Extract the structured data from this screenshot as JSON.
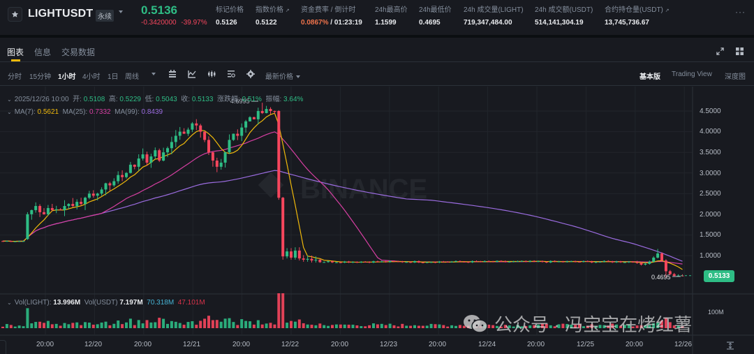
{
  "header": {
    "symbol": "LIGHTUSDT",
    "contract_type": "永续",
    "last_price": "0.5136",
    "change_abs": "-0.3420000",
    "change_pct": "-39.97%",
    "stats": [
      {
        "label": "标记价格",
        "value": "0.5126"
      },
      {
        "label": "指数价格",
        "value": "0.5122",
        "link": true
      },
      {
        "label": "资金费率 / 倒计时",
        "rate": "0.0867%",
        "countdown": "/ 01:23:19"
      },
      {
        "label": "24h最高价",
        "value": "1.1599"
      },
      {
        "label": "24h最低价",
        "value": "0.4695"
      },
      {
        "label": "24h 成交量(LIGHT)",
        "value": "719,347,484.00"
      },
      {
        "label": "24h 成交额(USDT)",
        "value": "514,141,304.19"
      },
      {
        "label": "合约持仓量(USDT)",
        "value": "13,745,736.67",
        "link": true
      }
    ],
    "more_label": "···"
  },
  "tabs": [
    {
      "label": "图表",
      "active": true
    },
    {
      "label": "信息",
      "active": false
    },
    {
      "label": "交易数据",
      "active": false
    }
  ],
  "toolbar": {
    "intervals": [
      {
        "label": "分时",
        "active": false
      },
      {
        "label": "15分钟",
        "active": false
      },
      {
        "label": "1小时",
        "active": true
      },
      {
        "label": "4小时",
        "active": false
      },
      {
        "label": "1日",
        "active": false
      },
      {
        "label": "周线",
        "active": false
      }
    ],
    "price_type": "最新价格",
    "views": [
      {
        "label": "基本版",
        "active": true
      },
      {
        "label": "Trading View",
        "active": false
      },
      {
        "label": "深度图",
        "active": false
      }
    ]
  },
  "legend": {
    "datetime": "2025/12/26 10:00",
    "open_label": "开:",
    "open": "0.5108",
    "high_label": "高:",
    "high": "0.5229",
    "low_label": "低:",
    "low": "0.5043",
    "close_label": "收:",
    "close": "0.5133",
    "change_label": "涨跌幅:",
    "change": "0.51%",
    "amplitude_label": "振幅:",
    "amplitude": "3.64%",
    "ma7_label": "MA(7):",
    "ma7": "0.5621",
    "ma25_label": "MA(25):",
    "ma25": "0.7332",
    "ma99_label": "MA(99):",
    "ma99": "0.8439"
  },
  "volume_legend": {
    "vol_base_label": "Vol(LIGHT):",
    "vol_base": "13.996M",
    "vol_quote_label": "Vol(USDT)",
    "vol_quote": "7.197M",
    "ma_a": "70.318M",
    "ma_b": "47.101M"
  },
  "annotations": {
    "high_marker": "4.6995",
    "low_marker": "0.4695",
    "last_price_tag": "0.5133",
    "volume_scale": "100M",
    "watermark_brand": "BINANCE",
    "watermark_text": "公众号 · 冯宝宝在烤红薯"
  },
  "colors": {
    "up": "#2ebd85",
    "down": "#f6465d",
    "ma7": "#f0b90b",
    "ma25": "#d63fa2",
    "ma99": "#9b6ce0",
    "accent": "#f0b90b"
  },
  "chart_data": {
    "type": "candlestick",
    "title": "LIGHTUSDT 1小时",
    "y_ticks": [
      "4.5000",
      "4.0000",
      "3.5000",
      "3.0000",
      "2.5000",
      "2.0000",
      "1.5000",
      "1.0000"
    ],
    "ylim": [
      0.3,
      4.9
    ],
    "x_ticks": [
      "20:00",
      "12/20",
      "20:00",
      "12/21",
      "20:00",
      "12/22",
      "20:00",
      "12/23",
      "20:00",
      "12/24",
      "20:00",
      "12/25",
      "20:00",
      "12/26"
    ],
    "series_summary": [
      {
        "phase": "pre-listing flat",
        "approx_price": 1.35
      },
      {
        "phase": "launch jump",
        "approx_price": 2.0
      },
      {
        "phase": "rally 12/20-12/21",
        "from": 2.0,
        "to": 4.6995
      },
      {
        "phase": "crash 12/21 late",
        "from": 4.5,
        "to": 0.95
      },
      {
        "phase": "flat 12/22-12/25",
        "approx_price": 0.85
      },
      {
        "phase": "spike & drop 12/26",
        "high": 1.1599,
        "low": 0.4695,
        "close": 0.5133
      }
    ],
    "ma_latest": {
      "MA7": 0.5621,
      "MA25": 0.7332,
      "MA99": 0.8439
    },
    "volume_latest": {
      "Vol(LIGHT)": "13.996M",
      "Vol(USDT)": "7.197M",
      "MA5": "70.318M",
      "MA10": "47.101M"
    }
  }
}
